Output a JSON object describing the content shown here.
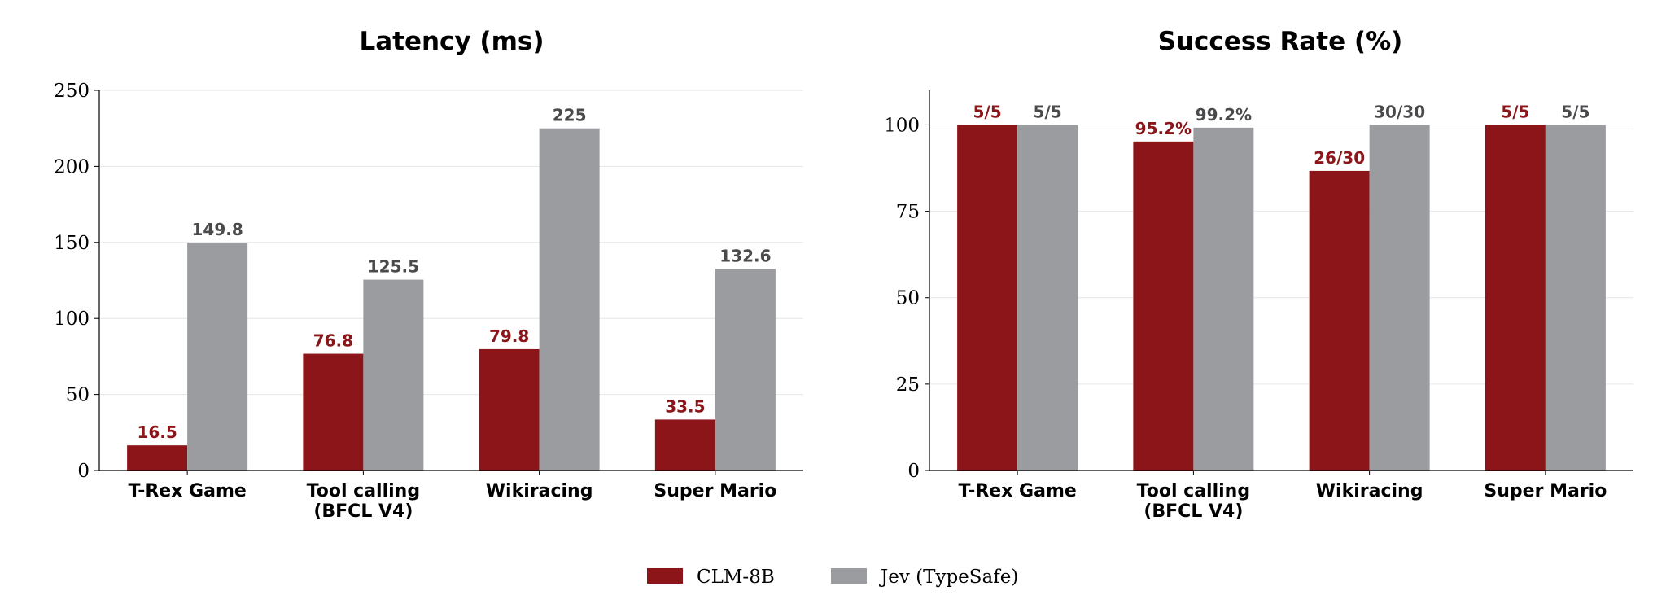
{
  "colors": {
    "clm": "#8b1518",
    "jev": "#9b9ca0",
    "clm_label": "#8b1518",
    "jev_label": "#4a4a4d"
  },
  "legend": {
    "items": [
      "CLM-8B",
      "Jev (TypeSafe)"
    ],
    "placement": "bottom-center"
  },
  "chart_data": [
    {
      "type": "bar",
      "title": "Latency (ms)",
      "categories": [
        [
          "T-Rex Game"
        ],
        [
          "Tool calling",
          "(BFCL V4)"
        ],
        [
          "Wikiracing"
        ],
        [
          "Super Mario"
        ]
      ],
      "ylim": [
        0,
        250
      ],
      "yticks": [
        "0",
        "50",
        "100",
        "150",
        "200",
        "250"
      ],
      "grid": true,
      "series": [
        {
          "name": "CLM-8B",
          "values": [
            16.5,
            76.8,
            79.8,
            33.5
          ],
          "labels": [
            "16.5",
            "76.8",
            "79.8",
            "33.5"
          ]
        },
        {
          "name": "Jev (TypeSafe)",
          "values": [
            149.8,
            125.5,
            225,
            132.6
          ],
          "labels": [
            "149.8",
            "125.5",
            "225",
            "132.6"
          ]
        }
      ]
    },
    {
      "type": "bar",
      "title": "Success Rate (%)",
      "categories": [
        [
          "T-Rex Game"
        ],
        [
          "Tool calling",
          "(BFCL V4)"
        ],
        [
          "Wikiracing"
        ],
        [
          "Super Mario"
        ]
      ],
      "ylim": [
        0,
        110
      ],
      "yticks": [
        "0",
        "25",
        "50",
        "75",
        "100"
      ],
      "grid": true,
      "series": [
        {
          "name": "CLM-8B",
          "values": [
            100,
            95.2,
            86.7,
            100
          ],
          "labels": [
            "5/5",
            "95.2%",
            "26/30",
            "5/5"
          ]
        },
        {
          "name": "Jev (TypeSafe)",
          "values": [
            100,
            99.2,
            100,
            100
          ],
          "labels": [
            "5/5",
            "99.2%",
            "30/30",
            "5/5"
          ]
        }
      ]
    }
  ]
}
